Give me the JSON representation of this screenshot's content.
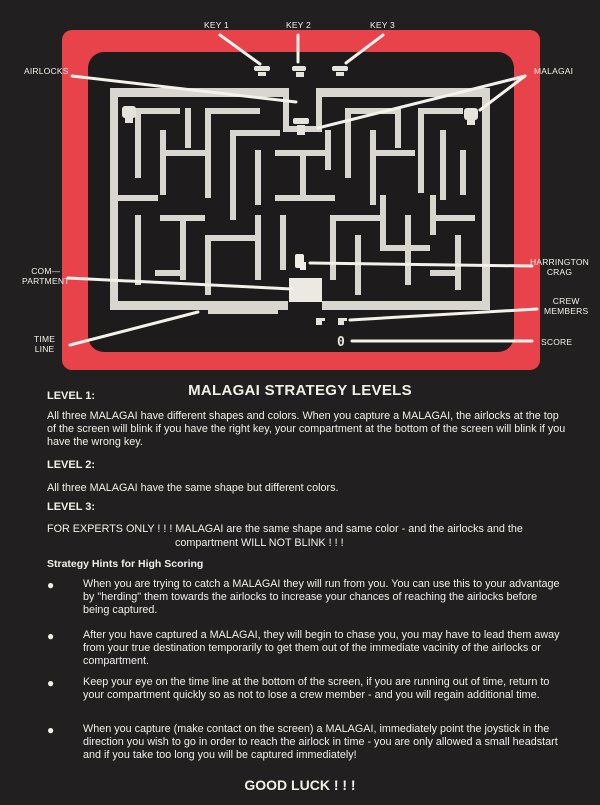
{
  "callouts": {
    "key1": "KEY 1",
    "key2": "KEY 2",
    "key3": "KEY 3",
    "airlocks": "AIRLOCKS",
    "malagai": "MALAGAI",
    "compartment": "COM—\nPARTMENT",
    "harrington": "HARRINGTON\nCRAG",
    "crew": "CREW\nMEMBERS",
    "time_line": "TIME\nLINE",
    "score": "SCORE"
  },
  "screen": {
    "score_value": "0"
  },
  "colors": {
    "frame": "#e8424a",
    "background": "#221f20",
    "maze_wall": "#d9d6d0"
  },
  "document": {
    "title": "MALAGAI STRATEGY LEVELS",
    "level1_heading": "LEVEL 1:",
    "level1_text": "All three MALAGAI have different shapes and colors.  When you capture a MALAGAI, the airlocks at the top of the screen will blink if you have the right key, your compartment at the bottom of the screen will blink if you have the wrong key.",
    "level2_heading": "LEVEL 2:",
    "level2_text": "All three MALAGAI have the same shape but different colors.",
    "level3_heading": "LEVEL 3:",
    "level3_text_line1": "FOR EXPERTS ONLY ! ! !  MALAGAI are the same shape and same color - and the airlocks and the",
    "level3_text_line2": "compartment WILL NOT BLINK ! ! !",
    "hints_heading": "Strategy Hints for High Scoring",
    "bullet_glyph": "●",
    "hints": [
      "When you are trying to catch a MALAGAI they will run from you.  You can use this to your advantage by \"herding\" them towards the airlocks to increase your chances of reaching the airlocks before being captured.",
      "After you have captured a MALAGAI, they will begin to chase you, you may have to lead them away from your true destination temporarily to get them out of the immediate vacinity of the airlocks or compartment.",
      "Keep your eye on the time line at the bottom of the screen, if you are running out of time, return to your compartment quickly so as not to lose a crew member - and you will regain additional time.",
      "When you capture (make contact on the screen) a MALAGAI, immediately point the joystick in the direction you wish to go in order to reach the airlock in time - you are only allowed a small headstart and if you take too long you will be captured immediately!"
    ],
    "closing": "GOOD LUCK ! ! !"
  }
}
